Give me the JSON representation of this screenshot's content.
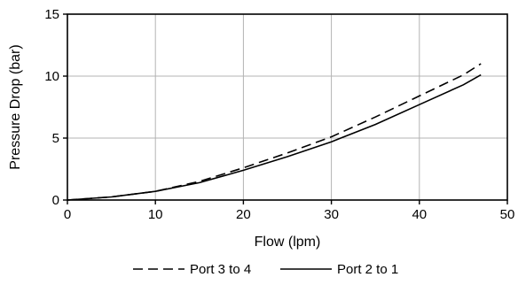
{
  "chart_data": {
    "type": "line",
    "xlabel": "Flow (lpm)",
    "ylabel": "Pressure Drop (bar)",
    "xlim": [
      0,
      50
    ],
    "ylim": [
      0,
      15
    ],
    "xticks": [
      0,
      10,
      20,
      30,
      40,
      50
    ],
    "yticks": [
      0,
      5,
      10,
      15
    ],
    "grid": true,
    "legend_position": "bottom-center",
    "series": [
      {
        "name": "Port 3 to 4",
        "style": "dashed",
        "color": "#000000",
        "x": [
          0,
          5,
          10,
          15,
          20,
          25,
          30,
          35,
          40,
          45,
          47
        ],
        "y": [
          0,
          0.25,
          0.7,
          1.5,
          2.6,
          3.8,
          5.1,
          6.7,
          8.4,
          10.1,
          11.0
        ]
      },
      {
        "name": "Port 2 to 1",
        "style": "solid",
        "color": "#000000",
        "x": [
          0,
          5,
          10,
          15,
          20,
          25,
          30,
          35,
          40,
          45,
          47
        ],
        "y": [
          0,
          0.25,
          0.7,
          1.4,
          2.4,
          3.5,
          4.7,
          6.1,
          7.7,
          9.3,
          10.1
        ]
      }
    ]
  }
}
